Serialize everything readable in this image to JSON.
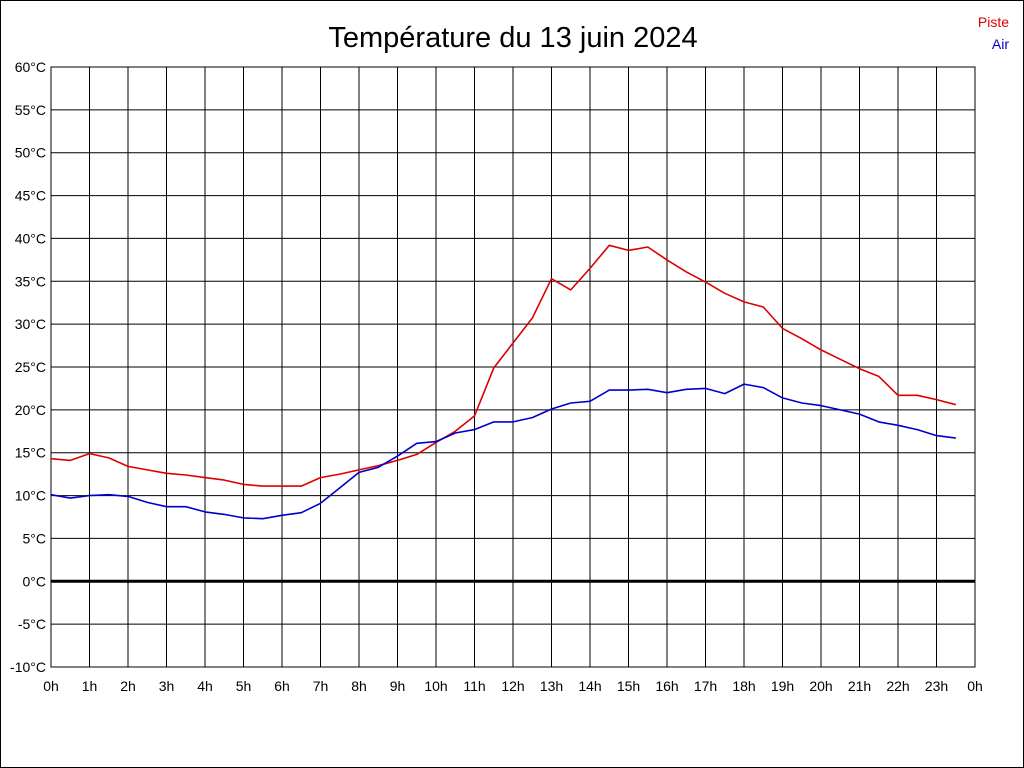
{
  "chart_data": {
    "type": "line",
    "title": "Température du 13 juin 2024",
    "x_tick_labels": [
      "0h",
      "1h",
      "2h",
      "3h",
      "4h",
      "5h",
      "6h",
      "7h",
      "8h",
      "9h",
      "10h",
      "11h",
      "12h",
      "13h",
      "14h",
      "15h",
      "16h",
      "17h",
      "18h",
      "19h",
      "20h",
      "21h",
      "22h",
      "23h",
      "0h"
    ],
    "y_tick_labels": [
      "-10°C",
      "-5°C",
      "0°C",
      "5°C",
      "10°C",
      "15°C",
      "20°C",
      "25°C",
      "30°C",
      "35°C",
      "40°C",
      "45°C",
      "50°C",
      "55°C",
      "60°C"
    ],
    "xlim": [
      0,
      24
    ],
    "ylim": [
      -10,
      60
    ],
    "x_step_hours": 0.5,
    "grid": true,
    "zero_line": true,
    "legend_position": "top-right",
    "series": [
      {
        "name": "Piste",
        "color": "#dd0000",
        "x": [
          0,
          0.5,
          1,
          1.5,
          2,
          2.5,
          3,
          3.5,
          4,
          4.5,
          5,
          5.5,
          6,
          6.5,
          7,
          7.5,
          8,
          8.5,
          9,
          9.5,
          10,
          10.5,
          11,
          11.5,
          12,
          12.5,
          13,
          13.5,
          14,
          14.5,
          15,
          15.5,
          16,
          16.5,
          17,
          17.5,
          18,
          18.5,
          19,
          19.5,
          20,
          20.5,
          21,
          21.5,
          22,
          22.5,
          23,
          23.5
        ],
        "values": [
          14.3,
          14.1,
          14.9,
          14.4,
          13.4,
          13.0,
          12.6,
          12.4,
          12.1,
          11.8,
          11.3,
          11.1,
          11.1,
          11.1,
          12.1,
          12.5,
          13.0,
          13.5,
          14.1,
          14.8,
          16.2,
          17.5,
          19.3,
          24.9,
          27.8,
          30.7,
          35.3,
          34.0,
          36.5,
          39.2,
          38.6,
          39.0,
          37.5,
          36.1,
          34.9,
          33.6,
          32.6,
          32.0,
          29.5,
          28.3,
          27.0,
          25.9,
          24.8,
          23.9,
          21.7,
          21.7,
          21.2,
          20.6
        ]
      },
      {
        "name": "Air",
        "color": "#0000cc",
        "x": [
          0,
          0.5,
          1,
          1.5,
          2,
          2.5,
          3,
          3.5,
          4,
          4.5,
          5,
          5.5,
          6,
          6.5,
          7,
          7.5,
          8,
          8.5,
          9,
          9.5,
          10,
          10.5,
          11,
          11.5,
          12,
          12.5,
          13,
          13.5,
          14,
          14.5,
          15,
          15.5,
          16,
          16.5,
          17,
          17.5,
          18,
          18.5,
          19,
          19.5,
          20,
          20.5,
          21,
          21.5,
          22,
          22.5,
          23,
          23.5
        ],
        "values": [
          10.1,
          9.7,
          10.0,
          10.1,
          9.9,
          9.2,
          8.7,
          8.7,
          8.1,
          7.8,
          7.4,
          7.3,
          7.7,
          8.0,
          9.1,
          10.9,
          12.7,
          13.3,
          14.6,
          16.1,
          16.3,
          17.3,
          17.7,
          18.6,
          18.6,
          19.1,
          20.1,
          20.8,
          21.0,
          22.3,
          22.3,
          22.4,
          22.0,
          22.4,
          22.5,
          21.9,
          23.0,
          22.6,
          21.4,
          20.8,
          20.5,
          20.0,
          19.5,
          18.6,
          18.2,
          17.7,
          17.0,
          16.7
        ]
      }
    ]
  }
}
